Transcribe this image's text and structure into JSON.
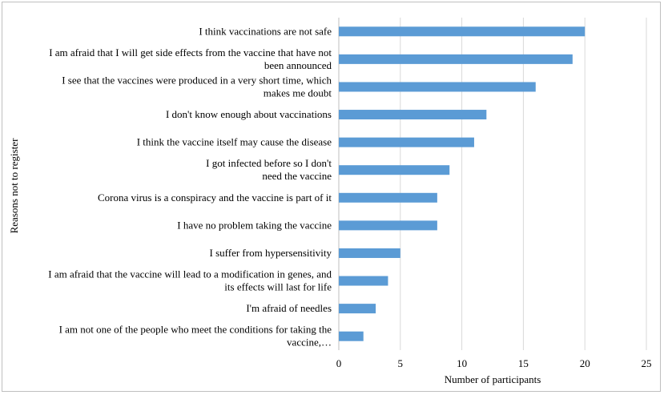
{
  "chart_data": {
    "type": "bar",
    "orientation": "horizontal",
    "xlabel": "Number of participants",
    "ylabel": "Reasons not to register",
    "xlim": [
      0,
      25
    ],
    "xticks": [
      0,
      5,
      10,
      15,
      20,
      25
    ],
    "grid": "vertical",
    "bar_color": "#5b9bd5",
    "categories": [
      {
        "lines": [
          "I think vaccinations are not safe"
        ],
        "value": 20
      },
      {
        "lines": [
          "I am afraid that I will get side effects from the vaccine that have not",
          "been announced"
        ],
        "value": 19
      },
      {
        "lines": [
          "I see that the vaccines were produced in a very short time, which",
          "makes me doubt"
        ],
        "value": 16
      },
      {
        "lines": [
          "I don't know enough about vaccinations"
        ],
        "value": 12
      },
      {
        "lines": [
          "I think the vaccine itself may cause the disease"
        ],
        "value": 11
      },
      {
        "lines": [
          "I got infected  before so I don't",
          "need the vaccine"
        ],
        "value": 9
      },
      {
        "lines": [
          "Corona virus is a conspiracy and the vaccine is part of it"
        ],
        "value": 8
      },
      {
        "lines": [
          "I have no problem taking the vaccine"
        ],
        "value": 8
      },
      {
        "lines": [
          "I suffer from hypersensitivity"
        ],
        "value": 5
      },
      {
        "lines": [
          "I am afraid that the vaccine will lead to a modification in genes, and",
          "its effects will last for life"
        ],
        "value": 4
      },
      {
        "lines": [
          "I'm afraid of needles"
        ],
        "value": 3
      },
      {
        "lines": [
          "I am not one of the people who meet the conditions for taking the",
          "vaccine,…"
        ],
        "value": 2
      }
    ]
  }
}
